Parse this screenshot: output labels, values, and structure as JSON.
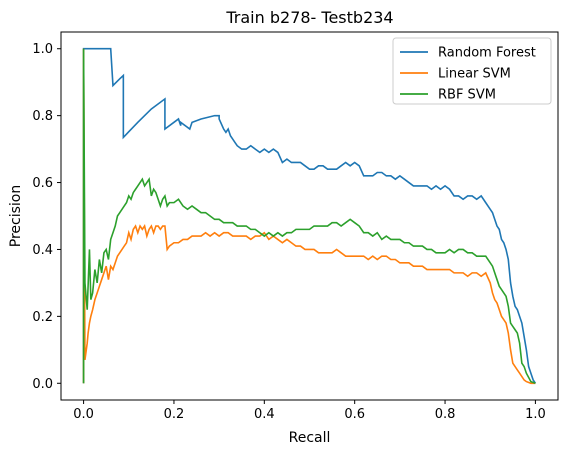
{
  "chart_data": {
    "type": "line",
    "title": "Train b278- Testb234",
    "xlabel": "Recall",
    "ylabel": "Precision",
    "xlim": [
      -0.05,
      1.05
    ],
    "ylim": [
      -0.05,
      1.05
    ],
    "xticks": [
      0.0,
      0.2,
      0.4,
      0.6,
      0.8,
      1.0
    ],
    "xtick_labels": [
      "0.0",
      "0.2",
      "0.4",
      "0.6",
      "0.8",
      "1.0"
    ],
    "yticks": [
      0.0,
      0.2,
      0.4,
      0.6,
      0.8,
      1.0
    ],
    "ytick_labels": [
      "0.0",
      "0.2",
      "0.4",
      "0.6",
      "0.8",
      "1.0"
    ],
    "grid": false,
    "legend_position": "top-right",
    "series": [
      {
        "name": "Random Forest",
        "color": "#1f77b4",
        "x": [
          0.0,
          0.0,
          0.06,
          0.065,
          0.08,
          0.088,
          0.088,
          0.12,
          0.15,
          0.18,
          0.18,
          0.2,
          0.21,
          0.215,
          0.215,
          0.235,
          0.24,
          0.26,
          0.29,
          0.3,
          0.3,
          0.31,
          0.315,
          0.32,
          0.325,
          0.33,
          0.335,
          0.34,
          0.35,
          0.36,
          0.37,
          0.38,
          0.39,
          0.4,
          0.41,
          0.42,
          0.43,
          0.44,
          0.45,
          0.46,
          0.47,
          0.48,
          0.49,
          0.5,
          0.51,
          0.52,
          0.53,
          0.54,
          0.55,
          0.56,
          0.57,
          0.58,
          0.59,
          0.6,
          0.61,
          0.62,
          0.63,
          0.64,
          0.65,
          0.66,
          0.67,
          0.68,
          0.69,
          0.7,
          0.71,
          0.72,
          0.73,
          0.74,
          0.75,
          0.76,
          0.77,
          0.78,
          0.79,
          0.8,
          0.81,
          0.82,
          0.83,
          0.84,
          0.85,
          0.86,
          0.87,
          0.88,
          0.89,
          0.9,
          0.905,
          0.91,
          0.915,
          0.92,
          0.925,
          0.93,
          0.935,
          0.94,
          0.945,
          0.95,
          0.955,
          0.96,
          0.965,
          0.97,
          0.975,
          0.98,
          0.985,
          0.99,
          0.995,
          1.0
        ],
        "y": [
          0.0,
          1.0,
          1.0,
          0.89,
          0.91,
          0.92,
          0.735,
          0.78,
          0.82,
          0.85,
          0.76,
          0.78,
          0.79,
          0.77,
          0.78,
          0.76,
          0.78,
          0.79,
          0.8,
          0.8,
          0.79,
          0.76,
          0.75,
          0.76,
          0.74,
          0.73,
          0.72,
          0.71,
          0.7,
          0.7,
          0.71,
          0.7,
          0.69,
          0.7,
          0.69,
          0.7,
          0.69,
          0.66,
          0.67,
          0.66,
          0.66,
          0.66,
          0.65,
          0.64,
          0.64,
          0.65,
          0.65,
          0.64,
          0.64,
          0.64,
          0.65,
          0.66,
          0.65,
          0.66,
          0.65,
          0.62,
          0.62,
          0.62,
          0.63,
          0.63,
          0.62,
          0.62,
          0.61,
          0.62,
          0.61,
          0.6,
          0.59,
          0.59,
          0.59,
          0.59,
          0.58,
          0.59,
          0.58,
          0.59,
          0.58,
          0.56,
          0.56,
          0.55,
          0.56,
          0.56,
          0.55,
          0.56,
          0.54,
          0.52,
          0.51,
          0.49,
          0.47,
          0.46,
          0.43,
          0.42,
          0.4,
          0.37,
          0.3,
          0.26,
          0.23,
          0.22,
          0.2,
          0.18,
          0.14,
          0.1,
          0.05,
          0.03,
          0.01,
          0.0
        ]
      },
      {
        "name": "Linear SVM",
        "color": "#ff7f0e",
        "x": [
          0.0,
          0.0,
          0.003,
          0.008,
          0.01,
          0.013,
          0.016,
          0.02,
          0.025,
          0.03,
          0.035,
          0.04,
          0.045,
          0.05,
          0.055,
          0.06,
          0.065,
          0.07,
          0.075,
          0.08,
          0.085,
          0.09,
          0.095,
          0.1,
          0.105,
          0.11,
          0.115,
          0.12,
          0.125,
          0.13,
          0.135,
          0.14,
          0.145,
          0.15,
          0.155,
          0.16,
          0.165,
          0.17,
          0.175,
          0.18,
          0.185,
          0.19,
          0.2,
          0.21,
          0.22,
          0.23,
          0.24,
          0.25,
          0.26,
          0.27,
          0.28,
          0.29,
          0.3,
          0.31,
          0.32,
          0.33,
          0.34,
          0.35,
          0.36,
          0.37,
          0.38,
          0.39,
          0.4,
          0.41,
          0.42,
          0.43,
          0.44,
          0.45,
          0.46,
          0.47,
          0.48,
          0.49,
          0.5,
          0.51,
          0.52,
          0.53,
          0.54,
          0.55,
          0.56,
          0.57,
          0.58,
          0.59,
          0.6,
          0.61,
          0.62,
          0.63,
          0.64,
          0.65,
          0.66,
          0.67,
          0.68,
          0.69,
          0.7,
          0.71,
          0.72,
          0.73,
          0.74,
          0.75,
          0.76,
          0.77,
          0.78,
          0.79,
          0.8,
          0.81,
          0.82,
          0.83,
          0.84,
          0.85,
          0.86,
          0.87,
          0.88,
          0.89,
          0.9,
          0.905,
          0.91,
          0.915,
          0.92,
          0.925,
          0.93,
          0.935,
          0.94,
          0.945,
          0.95,
          0.955,
          0.96,
          0.965,
          0.97,
          0.975,
          0.98,
          0.99,
          1.0
        ],
        "y": [
          0.0,
          1.0,
          0.07,
          0.12,
          0.15,
          0.18,
          0.2,
          0.22,
          0.25,
          0.27,
          0.29,
          0.31,
          0.33,
          0.35,
          0.31,
          0.35,
          0.34,
          0.36,
          0.38,
          0.39,
          0.4,
          0.41,
          0.42,
          0.45,
          0.43,
          0.46,
          0.47,
          0.45,
          0.47,
          0.46,
          0.47,
          0.44,
          0.46,
          0.47,
          0.45,
          0.47,
          0.47,
          0.46,
          0.47,
          0.47,
          0.4,
          0.41,
          0.42,
          0.42,
          0.43,
          0.43,
          0.44,
          0.44,
          0.44,
          0.45,
          0.44,
          0.45,
          0.44,
          0.45,
          0.45,
          0.44,
          0.44,
          0.44,
          0.44,
          0.43,
          0.44,
          0.44,
          0.45,
          0.43,
          0.44,
          0.43,
          0.42,
          0.43,
          0.42,
          0.41,
          0.41,
          0.4,
          0.4,
          0.4,
          0.39,
          0.39,
          0.39,
          0.39,
          0.4,
          0.39,
          0.38,
          0.38,
          0.38,
          0.38,
          0.38,
          0.37,
          0.38,
          0.37,
          0.38,
          0.38,
          0.37,
          0.37,
          0.36,
          0.36,
          0.36,
          0.35,
          0.35,
          0.35,
          0.34,
          0.34,
          0.34,
          0.34,
          0.34,
          0.34,
          0.33,
          0.33,
          0.33,
          0.32,
          0.33,
          0.33,
          0.32,
          0.33,
          0.3,
          0.27,
          0.25,
          0.24,
          0.22,
          0.2,
          0.19,
          0.18,
          0.15,
          0.1,
          0.06,
          0.05,
          0.04,
          0.03,
          0.02,
          0.01,
          0.005,
          0.0,
          0.0
        ]
      },
      {
        "name": "RBF SVM",
        "color": "#2ca02c",
        "x": [
          0.0,
          0.0,
          0.003,
          0.008,
          0.013,
          0.016,
          0.02,
          0.025,
          0.03,
          0.035,
          0.04,
          0.045,
          0.05,
          0.055,
          0.06,
          0.065,
          0.07,
          0.075,
          0.08,
          0.085,
          0.09,
          0.095,
          0.1,
          0.105,
          0.11,
          0.115,
          0.12,
          0.125,
          0.13,
          0.135,
          0.14,
          0.145,
          0.15,
          0.155,
          0.16,
          0.165,
          0.17,
          0.175,
          0.18,
          0.185,
          0.19,
          0.2,
          0.21,
          0.22,
          0.23,
          0.24,
          0.25,
          0.26,
          0.27,
          0.28,
          0.29,
          0.3,
          0.31,
          0.32,
          0.33,
          0.34,
          0.35,
          0.36,
          0.37,
          0.38,
          0.39,
          0.4,
          0.41,
          0.42,
          0.43,
          0.44,
          0.45,
          0.46,
          0.47,
          0.48,
          0.49,
          0.5,
          0.51,
          0.52,
          0.53,
          0.54,
          0.55,
          0.56,
          0.57,
          0.58,
          0.59,
          0.6,
          0.61,
          0.62,
          0.63,
          0.64,
          0.65,
          0.66,
          0.67,
          0.68,
          0.69,
          0.7,
          0.71,
          0.72,
          0.73,
          0.74,
          0.75,
          0.76,
          0.77,
          0.78,
          0.79,
          0.8,
          0.81,
          0.82,
          0.83,
          0.84,
          0.85,
          0.86,
          0.87,
          0.88,
          0.89,
          0.9,
          0.905,
          0.91,
          0.915,
          0.92,
          0.925,
          0.93,
          0.935,
          0.94,
          0.945,
          0.95,
          0.955,
          0.96,
          0.965,
          0.97,
          0.975,
          0.98,
          0.99,
          1.0
        ],
        "y": [
          0.0,
          1.0,
          0.3,
          0.22,
          0.4,
          0.25,
          0.27,
          0.34,
          0.3,
          0.37,
          0.33,
          0.39,
          0.4,
          0.37,
          0.43,
          0.45,
          0.47,
          0.5,
          0.51,
          0.52,
          0.53,
          0.54,
          0.56,
          0.55,
          0.57,
          0.58,
          0.59,
          0.6,
          0.61,
          0.59,
          0.6,
          0.61,
          0.56,
          0.58,
          0.57,
          0.55,
          0.53,
          0.55,
          0.56,
          0.53,
          0.54,
          0.54,
          0.55,
          0.53,
          0.52,
          0.53,
          0.52,
          0.51,
          0.51,
          0.5,
          0.49,
          0.49,
          0.48,
          0.48,
          0.48,
          0.47,
          0.47,
          0.47,
          0.46,
          0.46,
          0.45,
          0.44,
          0.45,
          0.44,
          0.45,
          0.44,
          0.45,
          0.45,
          0.46,
          0.46,
          0.46,
          0.46,
          0.47,
          0.47,
          0.47,
          0.47,
          0.48,
          0.48,
          0.47,
          0.48,
          0.49,
          0.48,
          0.47,
          0.45,
          0.45,
          0.44,
          0.45,
          0.43,
          0.44,
          0.43,
          0.43,
          0.43,
          0.42,
          0.42,
          0.41,
          0.41,
          0.41,
          0.4,
          0.4,
          0.39,
          0.39,
          0.39,
          0.4,
          0.39,
          0.4,
          0.4,
          0.39,
          0.39,
          0.38,
          0.38,
          0.38,
          0.36,
          0.35,
          0.33,
          0.31,
          0.29,
          0.28,
          0.27,
          0.26,
          0.23,
          0.18,
          0.17,
          0.16,
          0.15,
          0.12,
          0.06,
          0.05,
          0.03,
          0.005,
          0.0
        ]
      }
    ]
  }
}
